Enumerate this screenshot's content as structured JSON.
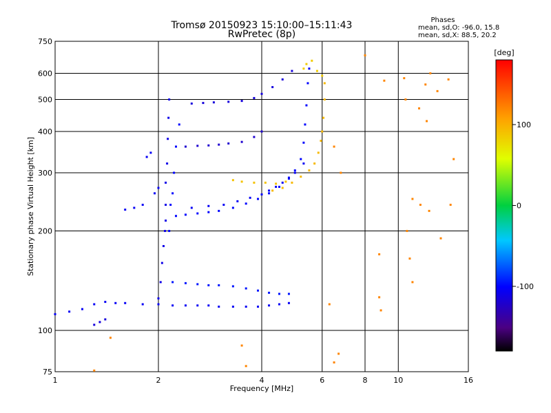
{
  "chart_data": {
    "type": "scatter",
    "title": "Tromsø 20150923 15:10:00–15:11:43",
    "subtitle": "RwPretec (8p)",
    "xlabel": "Frequency [MHz]",
    "ylabel": "Stationary phase Virtual Height [km]",
    "x_scale": "log",
    "y_scale": "log",
    "xlim": [
      1,
      16
    ],
    "ylim": [
      75,
      750
    ],
    "x_ticks": [
      1,
      2,
      4,
      6,
      8,
      10,
      16
    ],
    "y_ticks": [
      75,
      100,
      200,
      300,
      400,
      500,
      600,
      750
    ],
    "grid": true,
    "phase_stats": {
      "heading": "Phases",
      "line_o": "mean, sd,O: -96.0, 15.8",
      "line_x": "mean, sd,X:  88.5, 20.2"
    },
    "colorbar": {
      "label": "[deg]",
      "min": -180,
      "max": 180,
      "ticks": [
        100,
        0,
        -100
      ],
      "colormap": "rainbow"
    },
    "traces": [
      {
        "kind": "o-echo-F",
        "phase": -100,
        "points": [
          [
            2.25,
            222
          ],
          [
            2.4,
            224
          ],
          [
            2.6,
            226
          ],
          [
            2.8,
            228
          ],
          [
            3.0,
            230
          ],
          [
            3.3,
            235
          ],
          [
            3.6,
            242
          ],
          [
            3.9,
            250
          ],
          [
            4.2,
            260
          ],
          [
            4.5,
            272
          ],
          [
            4.8,
            290
          ],
          [
            5.0,
            305
          ],
          [
            5.2,
            330
          ],
          [
            5.3,
            370
          ],
          [
            5.35,
            420
          ],
          [
            5.4,
            480
          ],
          [
            5.45,
            560
          ],
          [
            5.5,
            620
          ]
        ]
      },
      {
        "kind": "o-echo-F-upper",
        "phase": -105,
        "points": [
          [
            2.5,
            235
          ],
          [
            2.8,
            238
          ],
          [
            3.1,
            240
          ],
          [
            3.4,
            246
          ],
          [
            3.7,
            252
          ],
          [
            4.0,
            258
          ],
          [
            4.2,
            265
          ],
          [
            4.4,
            272
          ],
          [
            4.6,
            280
          ],
          [
            4.8,
            288
          ],
          [
            5.0,
            300
          ],
          [
            5.3,
            320
          ]
        ]
      },
      {
        "kind": "x-echo-F",
        "phase": 95,
        "points": [
          [
            4.3,
            265
          ],
          [
            4.6,
            270
          ],
          [
            4.9,
            280
          ],
          [
            5.2,
            292
          ],
          [
            5.5,
            305
          ],
          [
            5.7,
            320
          ],
          [
            5.85,
            345
          ],
          [
            5.95,
            375
          ],
          [
            6.0,
            400
          ],
          [
            6.05,
            440
          ],
          [
            6.1,
            500
          ],
          [
            6.1,
            560
          ]
        ]
      },
      {
        "kind": "x-echo-band",
        "phase": 90,
        "points": [
          [
            3.3,
            285
          ],
          [
            3.5,
            282
          ],
          [
            3.8,
            280
          ],
          [
            4.1,
            280
          ],
          [
            4.4,
            278
          ],
          [
            4.7,
            282
          ]
        ]
      },
      {
        "kind": "x-echo-cusp",
        "phase": 85,
        "points": [
          [
            5.3,
            620
          ],
          [
            5.4,
            640
          ],
          [
            5.6,
            655
          ],
          [
            5.8,
            610
          ],
          [
            6.0,
            590
          ]
        ]
      },
      {
        "kind": "2F-multipath",
        "phase": -115,
        "points": [
          [
            2.5,
            486
          ],
          [
            2.7,
            488
          ],
          [
            2.9,
            490
          ],
          [
            3.2,
            492
          ],
          [
            3.5,
            495
          ],
          [
            3.8,
            505
          ],
          [
            4.0,
            520
          ],
          [
            4.3,
            545
          ],
          [
            4.6,
            575
          ],
          [
            4.9,
            610
          ]
        ]
      },
      {
        "kind": "oblique-echo",
        "phase": -120,
        "points": [
          [
            2.4,
            360
          ],
          [
            2.6,
            362
          ],
          [
            2.8,
            363
          ],
          [
            3.0,
            365
          ],
          [
            3.2,
            368
          ],
          [
            3.5,
            372
          ],
          [
            3.8,
            385
          ],
          [
            4.0,
            400
          ]
        ]
      },
      {
        "kind": "E-layer",
        "phase": -105,
        "points": [
          [
            1.0,
            112
          ],
          [
            1.1,
            114
          ],
          [
            1.2,
            116
          ],
          [
            1.3,
            120
          ],
          [
            1.4,
            122
          ],
          [
            1.5,
            121
          ],
          [
            1.6,
            121
          ],
          [
            1.8,
            120
          ],
          [
            2.0,
            120
          ],
          [
            2.2,
            119
          ],
          [
            2.4,
            119
          ],
          [
            2.6,
            119
          ],
          [
            2.8,
            119
          ],
          [
            3.0,
            118
          ],
          [
            3.3,
            118
          ],
          [
            3.6,
            118
          ],
          [
            3.9,
            118
          ],
          [
            4.2,
            119
          ],
          [
            4.5,
            120
          ],
          [
            4.8,
            121
          ]
        ]
      },
      {
        "kind": "Es-layer",
        "phase": -95,
        "points": [
          [
            2.2,
            140
          ],
          [
            2.4,
            139
          ],
          [
            2.6,
            138
          ],
          [
            2.8,
            137
          ],
          [
            3.0,
            137
          ],
          [
            3.3,
            136
          ],
          [
            3.6,
            134
          ],
          [
            3.9,
            132
          ],
          [
            4.2,
            130
          ],
          [
            4.5,
            129
          ],
          [
            4.8,
            129
          ]
        ]
      },
      {
        "kind": "E-cusp",
        "phase": -110,
        "points": [
          [
            2.0,
            125
          ],
          [
            2.03,
            140
          ],
          [
            2.05,
            160
          ],
          [
            2.07,
            180
          ],
          [
            2.09,
            200
          ],
          [
            2.1,
            215
          ],
          [
            2.1,
            240
          ],
          [
            2.1,
            280
          ],
          [
            2.12,
            320
          ],
          [
            2.13,
            380
          ],
          [
            2.14,
            440
          ],
          [
            2.15,
            500
          ]
        ]
      },
      {
        "kind": "E-cusp-x",
        "phase": -100,
        "points": [
          [
            2.15,
            200
          ],
          [
            2.17,
            240
          ],
          [
            2.2,
            260
          ],
          [
            2.22,
            300
          ],
          [
            2.25,
            360
          ],
          [
            2.3,
            420
          ]
        ]
      },
      {
        "kind": "Es-lower",
        "phase": -115,
        "points": [
          [
            1.3,
            104
          ],
          [
            1.35,
            106
          ],
          [
            1.4,
            108
          ]
        ]
      },
      {
        "kind": "scatter-block",
        "phase": -105,
        "points": [
          [
            1.6,
            232
          ],
          [
            1.7,
            235
          ],
          [
            1.8,
            240
          ],
          [
            1.85,
            335
          ],
          [
            1.9,
            345
          ],
          [
            1.95,
            260
          ],
          [
            2.0,
            270
          ]
        ]
      },
      {
        "kind": "noise",
        "phase": 120,
        "points": [
          [
            1.3,
            75.6
          ],
          [
            1.45,
            95
          ],
          [
            3.5,
            90
          ],
          [
            3.6,
            78
          ],
          [
            6.3,
            120
          ],
          [
            6.5,
            360
          ],
          [
            6.8,
            300
          ],
          [
            6.7,
            85
          ],
          [
            6.5,
            80
          ],
          [
            8.0,
            680
          ],
          [
            8.8,
            170
          ],
          [
            8.8,
            126
          ],
          [
            8.9,
            115
          ],
          [
            9.1,
            570
          ],
          [
            10.4,
            580
          ],
          [
            10.5,
            500
          ],
          [
            10.6,
            200
          ],
          [
            10.8,
            165
          ],
          [
            11.0,
            140
          ],
          [
            11.0,
            250
          ],
          [
            11.5,
            470
          ],
          [
            11.6,
            240
          ],
          [
            12.0,
            555
          ],
          [
            12.1,
            430
          ],
          [
            12.3,
            230
          ],
          [
            12.4,
            600
          ],
          [
            13.0,
            530
          ],
          [
            13.3,
            190
          ],
          [
            14.0,
            575
          ],
          [
            14.2,
            240
          ],
          [
            14.5,
            330
          ]
        ]
      }
    ]
  }
}
